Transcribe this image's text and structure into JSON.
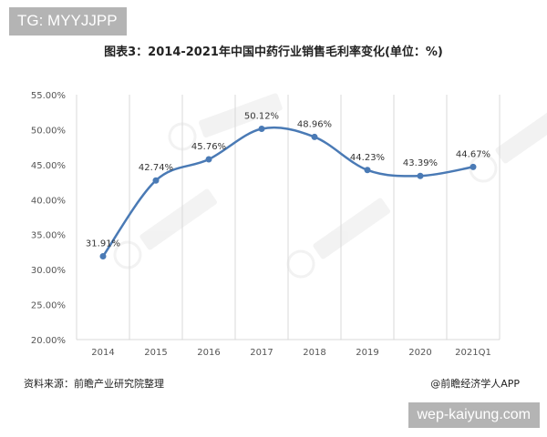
{
  "watermark_tag": "TG: MYYJJPP",
  "footer": {
    "source": "资料来源：前瞻产业研究院整理",
    "credit": "@前瞻经济学人APP"
  },
  "url_tag": "wep-kaiyung.com",
  "colors": {
    "line": "#4a7ab5",
    "grid": "#d9d9d9",
    "tag_background": "#b4b4b4"
  },
  "chart_data": {
    "type": "line",
    "title": "图表3：2014-2021年中国中药行业销售毛利率变化(单位：%)",
    "categories": [
      "2014",
      "2015",
      "2016",
      "2017",
      "2018",
      "2019",
      "2020",
      "2021Q1"
    ],
    "series": [
      {
        "values": [
          31.91,
          42.74,
          45.76,
          50.12,
          48.96,
          44.23,
          43.39,
          44.67
        ],
        "labels": [
          "31.91%",
          "42.74%",
          "45.76%",
          "50.12%",
          "48.96%",
          "44.23%",
          "43.39%",
          "44.67%"
        ]
      }
    ],
    "ylim": [
      20,
      55
    ],
    "yticks": [
      20,
      25,
      30,
      35,
      40,
      45,
      50,
      55
    ],
    "ytick_labels": [
      "20.00%",
      "25.00%",
      "30.00%",
      "35.00%",
      "40.00%",
      "45.00%",
      "50.00%",
      "55.00%"
    ],
    "grid": "vertical",
    "smooth": true,
    "xlabel": "",
    "ylabel": ""
  }
}
